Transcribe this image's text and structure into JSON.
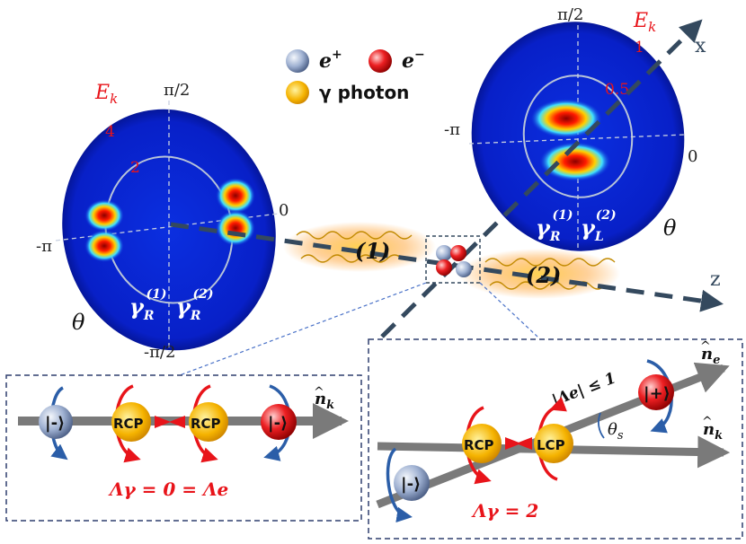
{
  "legend": {
    "positron_symbol": "e",
    "positron_sup": "+",
    "electron_symbol": "e",
    "electron_sup": "−",
    "photon_label": "γ photon"
  },
  "left_polar": {
    "ek_label": "E",
    "ek_sub": "k",
    "ring_outer": "4",
    "ring_inner": "2",
    "angle_top": "π/2",
    "angle_bottom": "-π/2",
    "angle_left": "-π",
    "angle_right": "0",
    "theta": "θ",
    "gamma_1": "γ",
    "gamma_1_sub": "R",
    "gamma_1_sup": "(1)",
    "gamma_2": "γ",
    "gamma_2_sub": "R",
    "gamma_2_sup": "(2)"
  },
  "right_polar": {
    "ek_label": "E",
    "ek_sub": "k",
    "ring_outer": "1",
    "ring_inner": "0.5",
    "angle_top": "π/2",
    "angle_left": "-π",
    "angle_right": "0",
    "theta": "θ",
    "gamma_1": "γ",
    "gamma_1_sub": "R",
    "gamma_1_sup": "(1)",
    "gamma_2": "γ",
    "gamma_2_sub": "L",
    "gamma_2_sup": "(2)"
  },
  "axes": {
    "x_label": "x",
    "z_label": "z"
  },
  "beam_labels": {
    "one": "(1)",
    "two": "(2)"
  },
  "left_box": {
    "state_left": "|-⟩",
    "rcp_1": "RCP",
    "rcp_2": "RCP",
    "state_right": "|-⟩",
    "n_label": "n",
    "n_sub": "k",
    "lambda_text": "Λγ = 0 = Λe"
  },
  "right_box": {
    "state_bottom": "|-⟩",
    "rcp": "RCP",
    "lcp": "LCP",
    "state_top": "|+⟩",
    "ne_label": "n",
    "ne_sub": "e",
    "nk_label": "n",
    "nk_sub": "k",
    "theta_s": "θ",
    "theta_s_sub": "s",
    "lambda_bound": "|Λe| ≤ 1",
    "lambda_text": "Λγ = 2"
  },
  "colors": {
    "positron": "#8fa4c8",
    "electron": "#e8141a",
    "photon": "#f0b400",
    "arrow_red": "#e8141a",
    "arrow_blue": "#2b5ea8",
    "axis_dark": "#34495e",
    "gray_bar": "#7a7a7a"
  }
}
